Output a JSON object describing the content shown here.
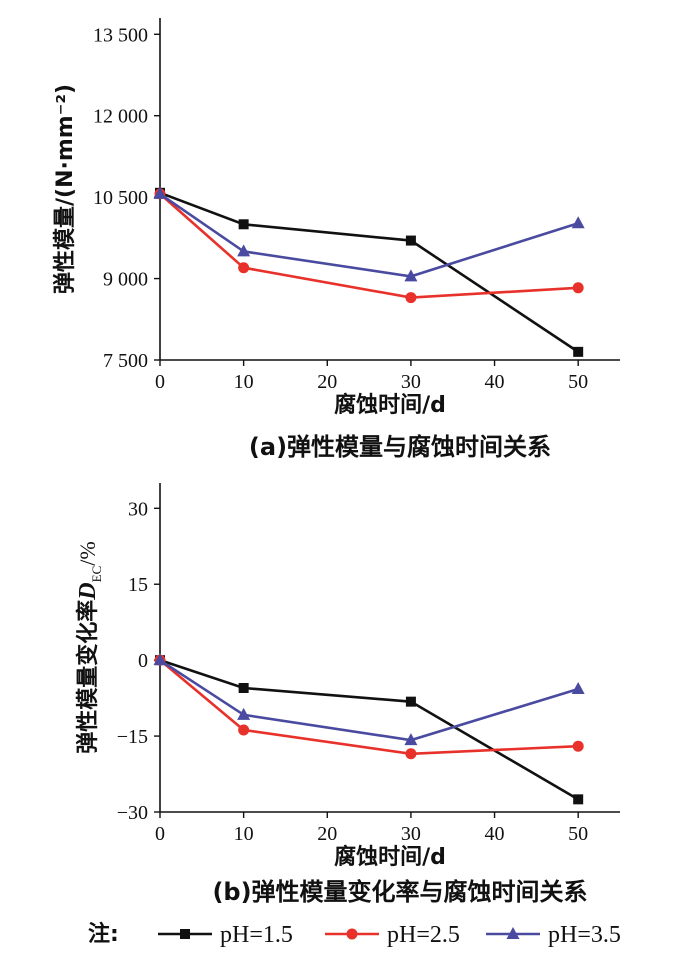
{
  "chart_data": [
    {
      "type": "line",
      "x": [
        0,
        10,
        30,
        50
      ],
      "xlabel": "腐蚀时间/d",
      "ylabel": "弹性模量/(N·mm⁻²)",
      "xlim": [
        0,
        55
      ],
      "ylim": [
        7500,
        13800
      ],
      "xticks": [
        "0",
        "10",
        "20",
        "30",
        "40",
        "50"
      ],
      "xtick_values": [
        0,
        10,
        20,
        30,
        40,
        50
      ],
      "yticks": [
        "7 500",
        "9 000",
        "10 500",
        "12 000",
        "13 500"
      ],
      "ytick_values": [
        7500,
        9000,
        10500,
        12000,
        13500
      ],
      "caption": "(a)弹性模量与腐蚀时间关系",
      "series": [
        {
          "name": "pH=1.5",
          "color": "#111111",
          "marker": "square",
          "values": [
            10580,
            10000,
            9700,
            7650
          ]
        },
        {
          "name": "pH=2.5",
          "color": "#e8312a",
          "marker": "circle",
          "values": [
            10560,
            9200,
            8650,
            8830
          ]
        },
        {
          "name": "pH=3.5",
          "color": "#4a4aa0",
          "marker": "triangle",
          "values": [
            10560,
            9500,
            9040,
            10020
          ]
        }
      ]
    },
    {
      "type": "line",
      "x": [
        0,
        10,
        30,
        50
      ],
      "xlabel": "腐蚀时间/d",
      "ylabel_main": "弹性模量变化率",
      "ylabel_var": "D",
      "ylabel_sub": "EC",
      "ylabel_unit": "/%",
      "xlim": [
        0,
        55
      ],
      "ylim": [
        -30,
        35
      ],
      "xticks": [
        "0",
        "10",
        "20",
        "30",
        "40",
        "50"
      ],
      "xtick_values": [
        0,
        10,
        20,
        30,
        40,
        50
      ],
      "yticks": [
        "−30",
        "−15",
        "0",
        "15",
        "30"
      ],
      "ytick_values": [
        -30,
        -15,
        0,
        15,
        30
      ],
      "caption": "(b)弹性模量变化率与腐蚀时间关系",
      "series": [
        {
          "name": "pH=1.5",
          "color": "#111111",
          "marker": "square",
          "values": [
            0,
            -5.5,
            -8.2,
            -27.5
          ]
        },
        {
          "name": "pH=2.5",
          "color": "#e8312a",
          "marker": "circle",
          "values": [
            0,
            -13.8,
            -18.5,
            -17
          ]
        },
        {
          "name": "pH=3.5",
          "color": "#4a4aa0",
          "marker": "triangle",
          "values": [
            0,
            -10.8,
            -15.8,
            -5.7
          ]
        }
      ]
    }
  ],
  "legend": {
    "note": "注:",
    "items": [
      {
        "label": "pH=1.5",
        "color": "#111111",
        "marker": "square"
      },
      {
        "label": "pH=2.5",
        "color": "#e8312a",
        "marker": "circle"
      },
      {
        "label": "pH=3.5",
        "color": "#4a4aa0",
        "marker": "triangle"
      }
    ]
  }
}
